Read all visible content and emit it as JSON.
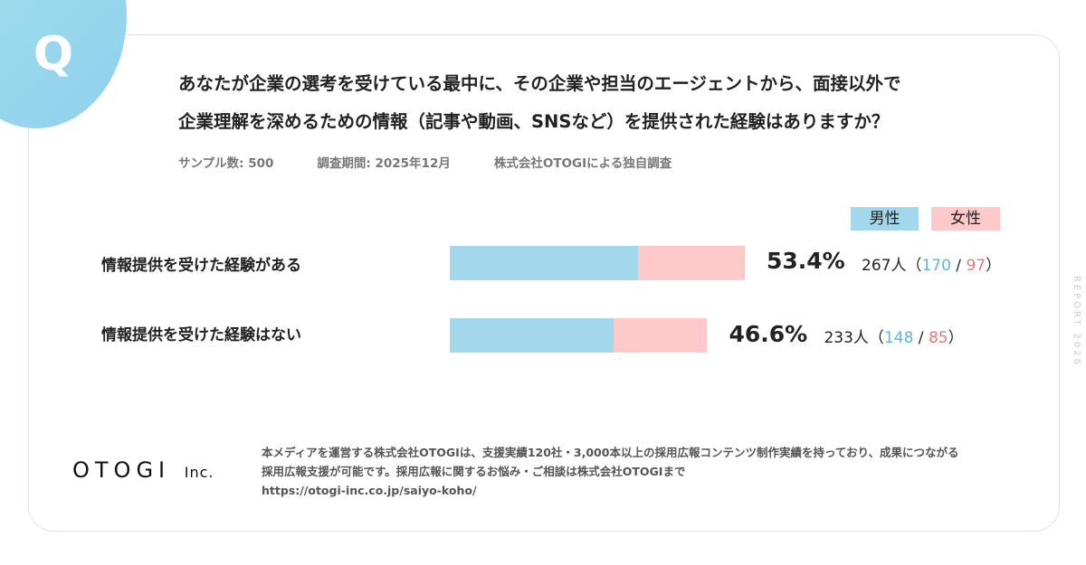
{
  "question": {
    "mark": "Q",
    "line1": "あなたが企業の選考を受けている最中に、その企業や担当のエージェントから、面接以外で",
    "line2": "企業理解を深めるための情報（記事や動画、SNSなど）を提供された経験はありますか？"
  },
  "meta": {
    "sample": "サンプル数:  500",
    "period": "調査期間: 2025年12月",
    "source": "株式会社OTOGIによる独自調査"
  },
  "colors": {
    "male": "#a3d8ec",
    "female": "#ffc9c9",
    "male_text": "#5fb6d6",
    "female_text": "#ea7878"
  },
  "chart_data": {
    "type": "bar",
    "orientation": "horizontal",
    "stacked": true,
    "legend": [
      {
        "name": "男性",
        "color": "#a3d8ec"
      },
      {
        "name": "女性",
        "color": "#ffc9c9"
      }
    ],
    "categories": [
      "情報提供を受けた経験がある",
      "情報提供を受けた経験はない"
    ],
    "series": [
      {
        "name": "男性",
        "values": [
          170,
          148
        ]
      },
      {
        "name": "女性",
        "values": [
          97,
          85
        ]
      }
    ],
    "percent_labels": [
      "53.4%",
      "46.6%"
    ],
    "totals": [
      267,
      233
    ],
    "count_labels": [
      {
        "total": "267人（",
        "male": "170",
        "sep": " / ",
        "female": "97",
        "close": "）"
      },
      {
        "total": "233人（",
        "male": "148",
        "sep": " / ",
        "female": "85",
        "close": "）"
      }
    ]
  },
  "side_text": "REPORT 2026",
  "logo": {
    "main": "OTOGI",
    "suffix": "Inc."
  },
  "footer": {
    "line1": "本メディアを運営する株式会社OTOGIは、支援実績120社・3,000本以上の採用広報コンテンツ制作実績を持っており、成果につながる",
    "line2": "採用広報支援が可能です。採用広報に関するお悩み・ご相談は株式会社OTOGIまで",
    "line3": "https://otogi-inc.co.jp/saiyo-koho/"
  }
}
